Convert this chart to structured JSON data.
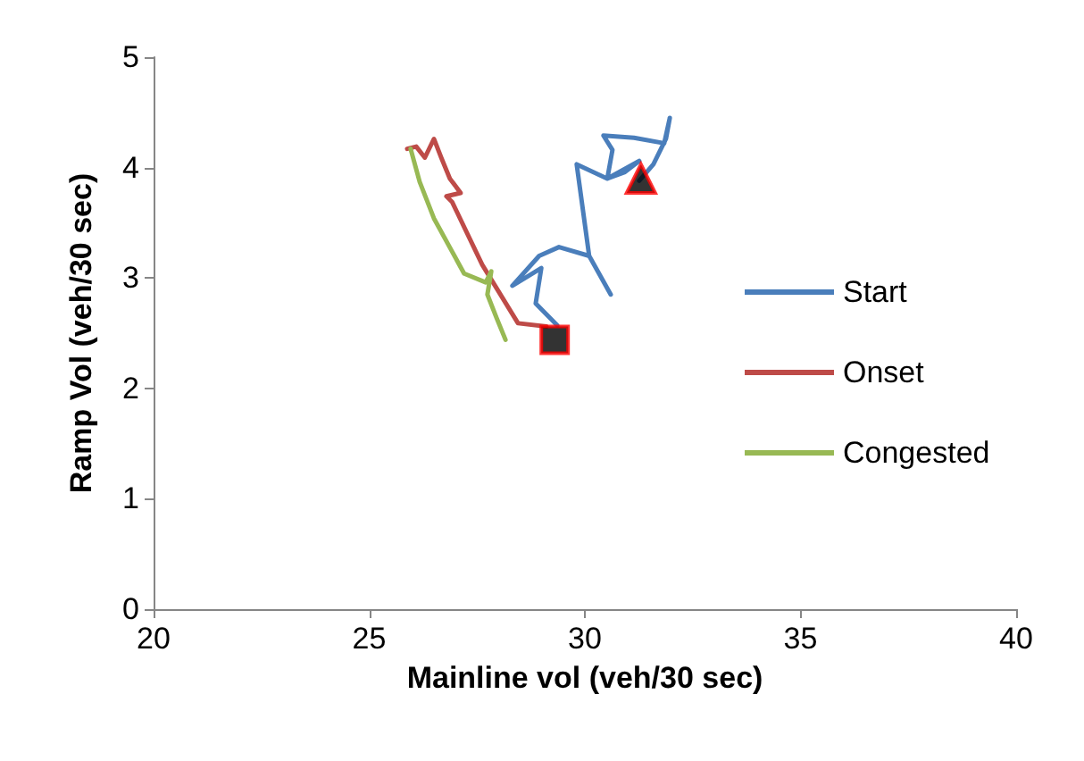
{
  "chart_data": {
    "type": "line",
    "xlabel": "Mainline vol (veh/30 sec)",
    "ylabel": "Ramp Vol (veh/30 sec)",
    "xlim": [
      20,
      40
    ],
    "xticks": [
      20,
      25,
      30,
      35,
      40
    ],
    "ylim": [
      0,
      5
    ],
    "yticks": [
      0,
      1,
      2,
      3,
      4,
      5
    ],
    "grid": false,
    "legend": "right",
    "line_style": "solid",
    "series": [
      {
        "name": "Start",
        "color": "#4a7ebb",
        "marker": "none",
        "x": [
          31.26,
          31.59,
          31.88,
          31.97,
          31.84,
          31.14,
          30.43,
          30.64,
          30.52,
          30.93,
          31.26,
          30.52,
          29.81,
          30.1,
          30.6,
          30.1,
          29.4,
          28.94,
          28.32,
          28.99,
          28.86,
          29.36
        ],
        "values": [
          3.88,
          4.03,
          4.26,
          4.45,
          4.22,
          4.27,
          4.29,
          4.16,
          3.9,
          3.96,
          4.06,
          3.9,
          4.03,
          3.2,
          2.85,
          3.2,
          3.28,
          3.2,
          2.93,
          3.09,
          2.77,
          2.57
        ]
      },
      {
        "name": "Onset",
        "color": "#be4b48",
        "marker": "none",
        "x": [
          29.11,
          28.45,
          27.62,
          26.92,
          26.79,
          27.12,
          26.87,
          26.67,
          26.5,
          26.29,
          26.09,
          25.88
        ],
        "values": [
          2.56,
          2.59,
          3.12,
          3.69,
          3.74,
          3.77,
          3.9,
          4.09,
          4.26,
          4.09,
          4.19,
          4.17
        ]
      },
      {
        "name": "Congested",
        "color": "#98b954",
        "marker": "none",
        "x": [
          25.96,
          26.17,
          26.5,
          27.2,
          27.7,
          27.83,
          27.74,
          27.95,
          28.16
        ],
        "values": [
          4.17,
          3.87,
          3.54,
          3.04,
          2.96,
          3.06,
          2.85,
          2.64,
          2.44
        ]
      },
      {
        "type": "scatter",
        "color": "#000000",
        "marker": "square",
        "x": [
          29.3
        ],
        "values": [
          2.44
        ]
      },
      {
        "type": "scatter",
        "color": "#000000",
        "marker": "triangle",
        "x": [
          31.3
        ],
        "values": [
          3.9
        ]
      }
    ]
  }
}
